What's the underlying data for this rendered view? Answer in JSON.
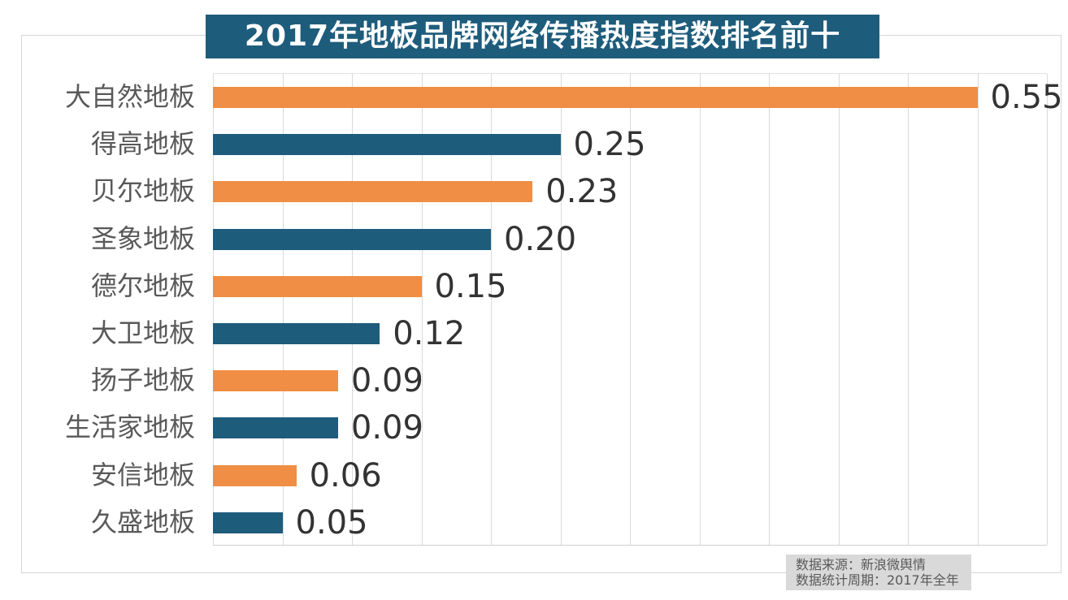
{
  "title": "2017年地板品牌网络传播热度指数排名前十",
  "source_box": {
    "line1": "数据来源：新浪微舆情",
    "line2": "数据统计周期：2017年全年"
  },
  "colors": {
    "accent_orange": "#ef8e44",
    "accent_blue": "#1e5c7c",
    "banner_bg": "#1e5c7c",
    "banner_text": "#ffffff",
    "category_label_text": "#595959",
    "value_label_text": "#333333",
    "gridline": "#dadada",
    "frame_border": "#d5d5d5",
    "source_box_bg": "#d9d9d9",
    "source_box_text": "#595959"
  },
  "chart_data": {
    "type": "bar",
    "orientation": "horizontal",
    "title": "2017年地板品牌网络传播热度指数排名前十",
    "categories": [
      "大自然地板",
      "得高地板",
      "贝尔地板",
      "圣象地板",
      "德尔地板",
      "大卫地板",
      "扬子地板",
      "生活家地板",
      "安信地板",
      "久盛地板"
    ],
    "values": [
      0.55,
      0.25,
      0.23,
      0.2,
      0.15,
      0.12,
      0.09,
      0.09,
      0.06,
      0.05
    ],
    "value_labels": [
      "0.55",
      "0.25",
      "0.23",
      "0.20",
      "0.15",
      "0.12",
      "0.09",
      "0.09",
      "0.06",
      "0.05"
    ],
    "bar_color_pattern": [
      "#ef8e44",
      "#1e5c7c"
    ],
    "xlabel": "",
    "ylabel": "",
    "xlim": [
      0,
      0.6
    ],
    "grid_interval": 0.05,
    "grid": "vertical-only",
    "legend": "none",
    "value_labels_position": "end-of-bar",
    "annotations": [
      "数据来源：新浪微舆情",
      "数据统计周期：2017年全年"
    ]
  }
}
